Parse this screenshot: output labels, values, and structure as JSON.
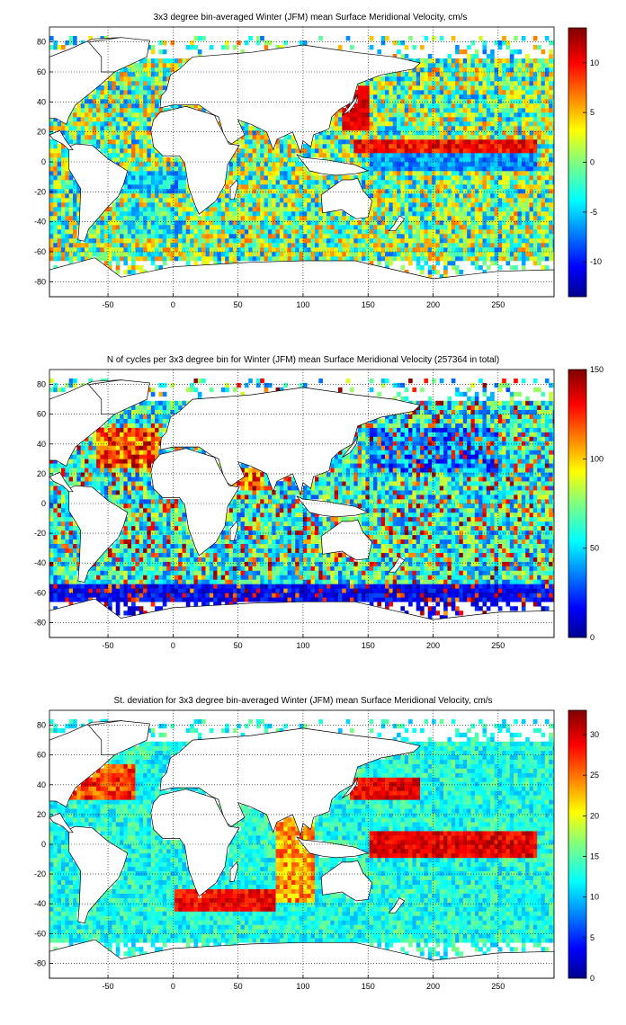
{
  "chart_data": [
    {
      "type": "heatmap",
      "title": "3x3 degree bin-averaged Winter (JFM) mean Surface Meridional Velocity, cm/s",
      "xlim": [
        -95,
        293
      ],
      "ylim": [
        -90,
        90
      ],
      "x_ticks": [
        -50,
        0,
        50,
        100,
        150,
        200,
        250
      ],
      "y_ticks": [
        -80,
        -60,
        -40,
        -20,
        0,
        20,
        40,
        60,
        80
      ],
      "grid": true,
      "grid_style": "dotted",
      "colormap": "jet",
      "colorbar": {
        "placement": "right",
        "range": [
          -13.5,
          13.5
        ],
        "ticks": [
          -10,
          -5,
          0,
          5,
          10
        ]
      },
      "field": "meridional_velocity",
      "bin_size_deg": 3,
      "notable_features": "equatorial Pacific band negative (blue) near -10 cm/s; boundary currents strongly positive (red) near +10 cm/s"
    },
    {
      "type": "heatmap",
      "title": "N of cycles per 3x3 degree bin for Winter (JFM) mean Surface Meridional Velocity (257364 in total)",
      "xlim": [
        -95,
        293
      ],
      "ylim": [
        -90,
        90
      ],
      "x_ticks": [
        -50,
        0,
        50,
        100,
        150,
        200,
        250
      ],
      "y_ticks": [
        -80,
        -60,
        -40,
        -20,
        0,
        20,
        40,
        60,
        80
      ],
      "grid": true,
      "grid_style": "dotted",
      "colormap": "jet",
      "colorbar": {
        "placement": "right",
        "range": [
          0,
          150
        ],
        "ticks": [
          0,
          50,
          100,
          150
        ]
      },
      "field": "cycle_count",
      "total": 257364,
      "bin_size_deg": 3,
      "notable_features": "Southern Ocean band low counts (blue, near 0-20); North Atlantic and subtropical regions high (red, near 150)"
    },
    {
      "type": "heatmap",
      "title": "St. deviation for 3x3 degree bin-averaged Winter (JFM) mean Surface Meridional Velocity, cm/s",
      "xlim": [
        -95,
        293
      ],
      "ylim": [
        -90,
        90
      ],
      "x_ticks": [
        -50,
        0,
        50,
        100,
        150,
        200,
        250
      ],
      "y_ticks": [
        -80,
        -60,
        -40,
        -20,
        0,
        20,
        40,
        60,
        80
      ],
      "grid": true,
      "grid_style": "dotted",
      "colormap": "jet",
      "colorbar": {
        "placement": "right",
        "range": [
          0,
          33
        ],
        "ticks": [
          0,
          5,
          10,
          15,
          20,
          25,
          30
        ]
      },
      "field": "std_deviation",
      "bin_size_deg": 3,
      "notable_features": "equatorial Pacific and western boundary currents high (red, near 30); subtropical gyres low (cyan-blue, 10-15)"
    }
  ]
}
